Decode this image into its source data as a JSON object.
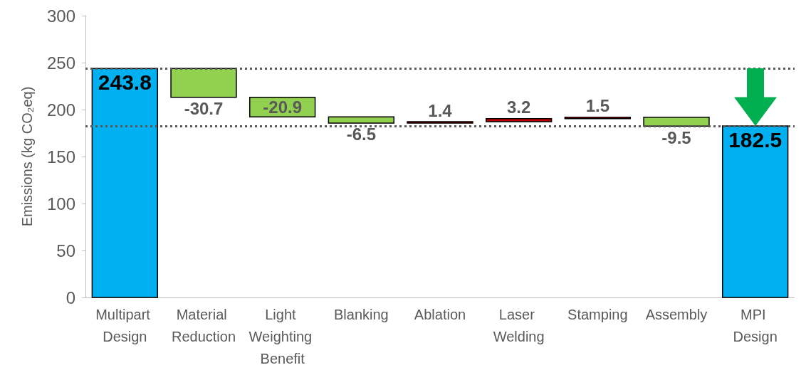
{
  "chart_data": {
    "type": "bar",
    "ylabel": "Emissions (kg CO₂eq)",
    "categories": [
      "Multipart Design",
      "Material Reduction",
      "Light Weighting Benefit",
      "Blanking",
      "Ablation",
      "Laser Welding",
      "Stamping",
      "Assembly",
      "MPI Design"
    ],
    "values": [
      243.8,
      -30.7,
      -20.9,
      -6.5,
      1.4,
      3.2,
      1.5,
      -9.5,
      182.5
    ],
    "base": [
      0,
      243.8,
      213.1,
      192.2,
      185.7,
      187.1,
      190.3,
      191.8,
      0
    ],
    "colors": [
      "#00b0f0",
      "#92d050",
      "#92d050",
      "#92d050",
      "#c00000",
      "#c00000",
      "#c00000",
      "#92d050",
      "#00b0f0"
    ],
    "ylim": [
      0,
      300
    ],
    "yticks": [
      0,
      50,
      100,
      150,
      200,
      250,
      300
    ],
    "grid": false,
    "data_labels": true,
    "ref_lines": [
      {
        "axis": "y",
        "value": 243.8,
        "line_style": "dotted",
        "color": "#595959"
      },
      {
        "axis": "y",
        "value": 182.5,
        "line_style": "dotted",
        "color": "#595959"
      }
    ]
  }
}
